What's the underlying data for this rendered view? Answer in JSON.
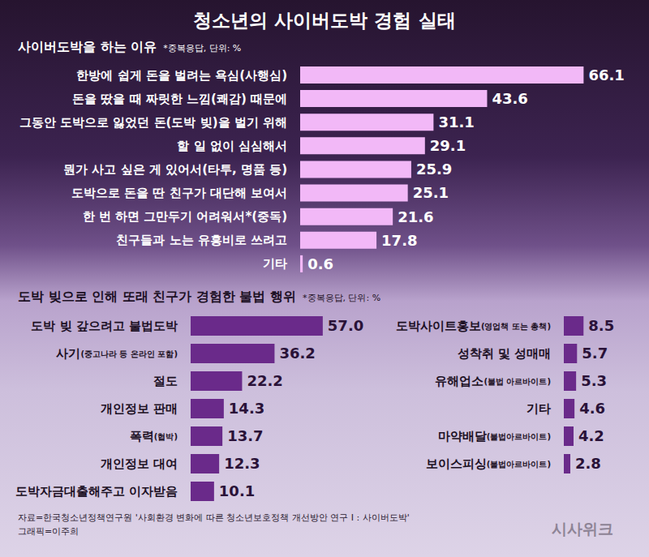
{
  "title": "청소년의 사이버도박 경험 실태",
  "source": "자료=한국청소년정책연구원 '사회환경 변화에 따른 청소년보호정책 개선방안 연구 I : 사이버도박'",
  "credit": "그래픽=이주희",
  "watermark": "시사위크",
  "chart_data": [
    {
      "type": "bar",
      "orientation": "horizontal",
      "title": "사이버도박을 하는 이유",
      "subtitle": "*중복응답, 단위: %",
      "categories": [
        "한방에 쉽게 돈을 벌려는 욕심(사행심)",
        "돈을 땄을 때 짜릿한 느낌(쾌감) 때문에",
        "그동안 도박으로 잃었던 돈(도박 빚)을 벌기 위해",
        "할 일 없이 심심해서",
        "뭔가 사고 싶은 게 있어서(타투, 명품 등)",
        "도박으로 돈을 딴 친구가 대단해 보여서",
        "한 번 하면 그만두기 어려워서*(중독)",
        "친구들과 노는 유흥비로 쓰려고",
        "기타"
      ],
      "values": [
        66.1,
        43.6,
        31.1,
        29.1,
        25.9,
        25.1,
        21.6,
        17.8,
        0.6
      ],
      "color": "#f2b8f7",
      "xlim": [
        0,
        70
      ],
      "grid": false,
      "tick_labels": "y",
      "data_labels": true
    },
    {
      "type": "bar",
      "orientation": "horizontal",
      "title": "도박 빚으로 인해 또래 친구가 경험한 불법 행위",
      "subtitle": "*중복응답, 단위: %",
      "categories": [
        "도박 빚 갚으려고 불법도박",
        "사기(중고나라 등 온라인 포함)",
        "절도",
        "개인정보 판매",
        "폭력(협박)",
        "개인정보 대여",
        "도박자금대출해주고 이자받음",
        "도박사이트홍보(영업책 또는 총책)",
        "성착취 및 성매매",
        "유해업소(불법 아르바이트)",
        "기타",
        "마약배달(불법아르바이트)",
        "보이스피싱(불법아르바이트)"
      ],
      "values": [
        57,
        36.2,
        22.2,
        14.3,
        13.7,
        12.3,
        10.1,
        8.5,
        5.7,
        5.3,
        4.6,
        4.2,
        2.8
      ],
      "value_labels": [
        "57.0",
        "36.2",
        "22.2",
        "14.3",
        "13.7",
        "12.3",
        "10.1",
        "8.5",
        "5.7",
        "5.3",
        "4.6",
        "4.2",
        "2.8"
      ],
      "color": "#6a2a8a",
      "xlim": [
        0,
        70
      ],
      "grid": false,
      "tick_labels": "y",
      "data_labels": true
    }
  ]
}
